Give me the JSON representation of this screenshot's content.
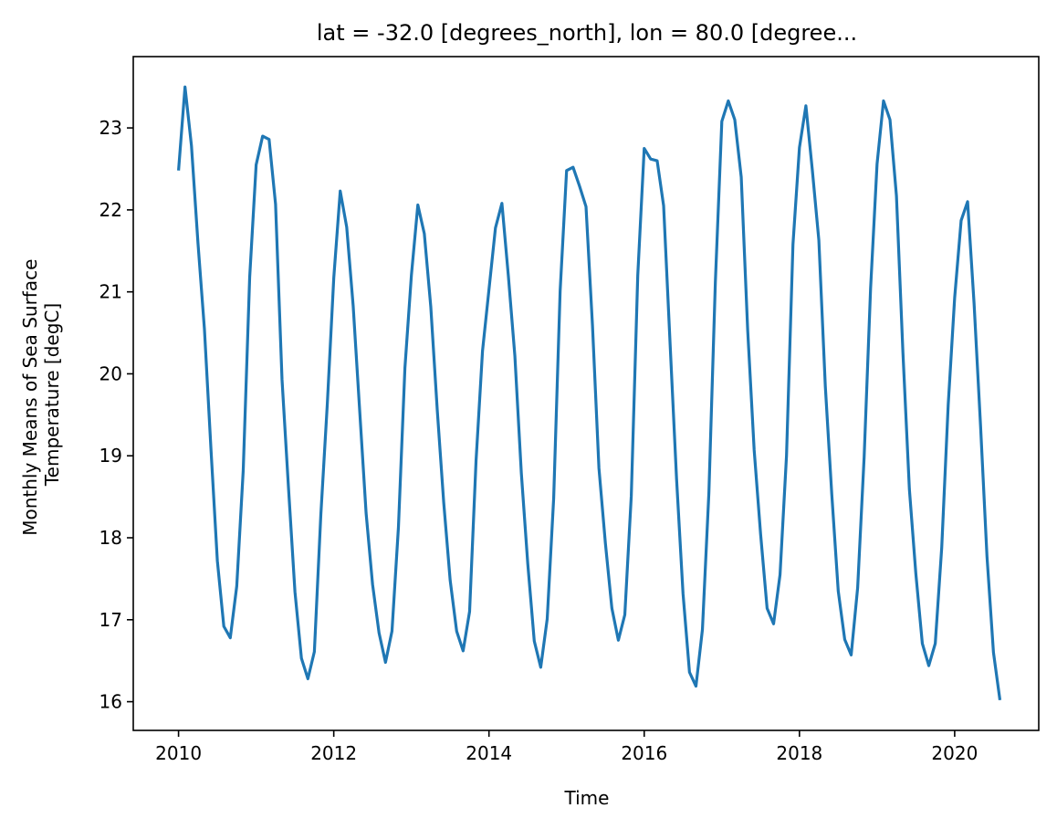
{
  "chart_data": {
    "type": "line",
    "title": "lat = -32.0 [degrees_north], lon = 80.0 [degree...",
    "xlabel": "Time",
    "ylabel_line1": "Monthly Means of Sea Surface",
    "ylabel_line2": "Temperature [degC]",
    "x_ticks": [
      "2010",
      "2012",
      "2014",
      "2016",
      "2018",
      "2020"
    ],
    "y_ticks": [
      "16",
      "17",
      "18",
      "19",
      "20",
      "21",
      "22",
      "23"
    ],
    "xlim": [
      "2009-06",
      "2021-02"
    ],
    "ylim": [
      15.65,
      23.87
    ],
    "grid": false,
    "color": "#1f77b4",
    "series": [
      {
        "x": [
          "2010-01",
          "2010-02",
          "2010-03",
          "2010-04",
          "2010-05",
          "2010-06",
          "2010-07",
          "2010-08",
          "2010-09",
          "2010-10",
          "2010-11",
          "2010-12",
          "2011-01",
          "2011-02",
          "2011-03",
          "2011-04",
          "2011-05",
          "2011-06",
          "2011-07",
          "2011-08",
          "2011-09",
          "2011-10",
          "2011-11",
          "2011-12",
          "2012-01",
          "2012-02",
          "2012-03",
          "2012-04",
          "2012-05",
          "2012-06",
          "2012-07",
          "2012-08",
          "2012-09",
          "2012-10",
          "2012-11",
          "2012-12",
          "2013-01",
          "2013-02",
          "2013-03",
          "2013-04",
          "2013-05",
          "2013-06",
          "2013-07",
          "2013-08",
          "2013-09",
          "2013-10",
          "2013-11",
          "2013-12",
          "2014-01",
          "2014-02",
          "2014-03",
          "2014-04",
          "2014-05",
          "2014-06",
          "2014-07",
          "2014-08",
          "2014-09",
          "2014-10",
          "2014-11",
          "2014-12",
          "2015-01",
          "2015-02",
          "2015-03",
          "2015-04",
          "2015-05",
          "2015-06",
          "2015-07",
          "2015-08",
          "2015-09",
          "2015-10",
          "2015-11",
          "2015-12",
          "2016-01",
          "2016-02",
          "2016-03",
          "2016-04",
          "2016-05",
          "2016-06",
          "2016-07",
          "2016-08",
          "2016-09",
          "2016-10",
          "2016-11",
          "2016-12",
          "2017-01",
          "2017-02",
          "2017-03",
          "2017-04",
          "2017-05",
          "2017-06",
          "2017-07",
          "2017-08",
          "2017-09",
          "2017-10",
          "2017-11",
          "2017-12",
          "2018-01",
          "2018-02",
          "2018-03",
          "2018-04",
          "2018-05",
          "2018-06",
          "2018-07",
          "2018-08",
          "2018-09",
          "2018-10",
          "2018-11",
          "2018-12",
          "2019-01",
          "2019-02",
          "2019-03",
          "2019-04",
          "2019-05",
          "2019-06",
          "2019-07",
          "2019-08",
          "2019-09",
          "2019-10",
          "2019-11",
          "2019-12",
          "2020-01",
          "2020-02",
          "2020-03",
          "2020-04",
          "2020-05",
          "2020-06",
          "2020-07",
          "2020-08"
        ],
        "values": [
          22.48,
          23.5,
          22.78,
          21.6,
          20.55,
          19.1,
          17.72,
          16.92,
          16.78,
          17.41,
          18.82,
          21.18,
          22.55,
          22.9,
          22.86,
          22.07,
          19.93,
          18.61,
          17.34,
          16.53,
          16.28,
          16.61,
          18.28,
          19.63,
          21.17,
          22.23,
          21.79,
          20.83,
          19.56,
          18.3,
          17.43,
          16.84,
          16.48,
          16.86,
          18.13,
          20.07,
          21.2,
          22.06,
          21.71,
          20.82,
          19.56,
          18.43,
          17.48,
          16.86,
          16.62,
          17.1,
          18.94,
          20.28,
          21.03,
          21.78,
          22.08,
          21.19,
          20.22,
          18.79,
          17.68,
          16.74,
          16.42,
          17.01,
          18.48,
          21.01,
          22.48,
          22.52,
          22.29,
          22.04,
          20.59,
          18.85,
          17.93,
          17.14,
          16.75,
          17.06,
          18.51,
          21.2,
          22.75,
          22.62,
          22.6,
          22.05,
          20.37,
          18.72,
          17.32,
          16.36,
          16.19,
          16.88,
          18.55,
          21.12,
          23.08,
          23.33,
          23.1,
          22.4,
          20.53,
          19.07,
          18.04,
          17.14,
          16.95,
          17.55,
          19.0,
          21.58,
          22.76,
          23.27,
          22.48,
          21.63,
          19.85,
          18.53,
          17.35,
          16.76,
          16.57,
          17.39,
          18.98,
          21.04,
          22.56,
          23.33,
          23.1,
          22.17,
          20.26,
          18.59,
          17.56,
          16.71,
          16.44,
          16.71,
          17.88,
          19.62,
          20.93,
          21.87,
          22.1,
          20.86,
          19.37,
          17.77,
          16.6,
          16.02
        ]
      }
    ]
  }
}
